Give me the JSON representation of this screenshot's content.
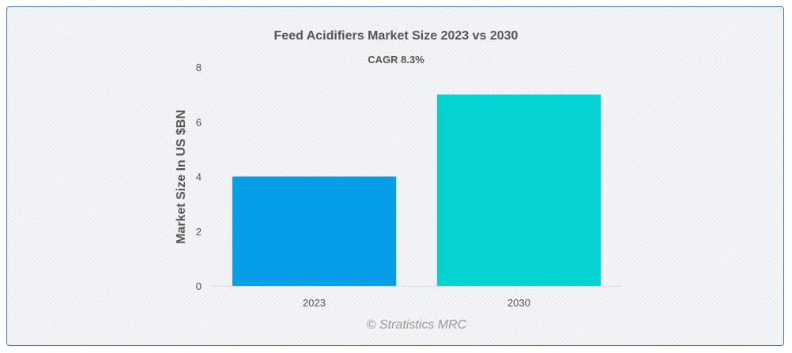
{
  "chart_data": {
    "type": "bar",
    "title": "Feed Acidifiers Market Size 2023 vs 2030",
    "subtitle": "CAGR 8.3%",
    "ylabel": "Market Size In US $BN",
    "xlabel": "",
    "categories": [
      "2023",
      "2030"
    ],
    "values": [
      4,
      7
    ],
    "colors": [
      "#059fe9",
      "#03d3d3"
    ],
    "ylim": [
      0,
      8
    ],
    "yticks": [
      0,
      2,
      4,
      6,
      8
    ],
    "grid": false,
    "legend": "none"
  },
  "credit": "© Stratistics MRC"
}
